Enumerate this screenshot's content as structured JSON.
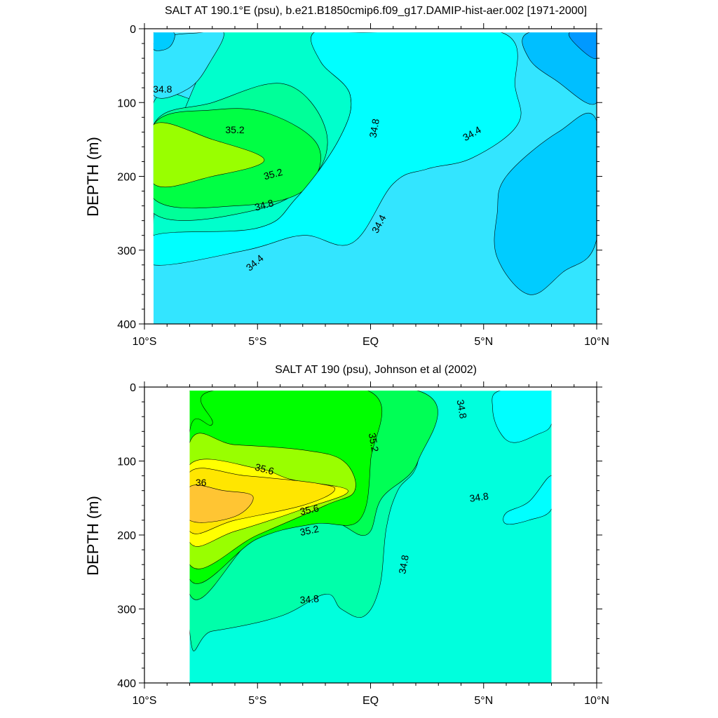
{
  "chart_data": [
    {
      "type": "contour",
      "title": "SALT AT 190.1°E (psu), b.e21.B1850cmip6.f09_g17.DAMIP-hist-aer.002 [1971-2000]",
      "ylabel": "DEPTH (m)",
      "xlabel": "",
      "xlim": [
        -10,
        10
      ],
      "ylim": [
        0,
        400
      ],
      "y_reversed": true,
      "x_ticks": [
        -10,
        -5,
        0,
        5,
        10
      ],
      "x_tick_labels": [
        "10°S",
        "5°S",
        "EQ",
        "5°N",
        "10°N"
      ],
      "y_ticks": [
        0,
        100,
        200,
        300,
        400
      ],
      "y_tick_labels": [
        "0",
        "100",
        "200",
        "300",
        "400"
      ],
      "data_extent": {
        "x": [
          -9.6,
          10
        ],
        "y": [
          5,
          400
        ]
      },
      "background_color": "#33E5FF",
      "regions": [
        {
          "level": 34.8,
          "color": "#00FFCC",
          "outline": [
            [
              -9.6,
              100
            ],
            [
              -7,
              100
            ],
            [
              -4,
              75
            ],
            [
              -1.3,
              130
            ],
            [
              -1.3,
              180
            ],
            [
              -3,
              240
            ],
            [
              -6,
              270
            ],
            [
              -9.6,
              280
            ]
          ]
        },
        {
          "level": 34.8,
          "color": "#00FFCC",
          "outline": [
            [
              -6.5,
              5
            ],
            [
              -2.5,
              5
            ],
            [
              -2.2,
              45
            ],
            [
              -0.9,
              90
            ],
            [
              -1.4,
              150
            ],
            [
              -3.3,
              230
            ],
            [
              -5,
              270
            ],
            [
              -9.6,
              280
            ]
          ]
        },
        {
          "level": 35.0,
          "color": "#00FF99",
          "outline": [
            [
              -9.6,
              130
            ],
            [
              -7,
              100
            ],
            [
              -3.8,
              75
            ],
            [
              -2,
              135
            ],
            [
              -2.5,
              200
            ],
            [
              -5,
              245
            ],
            [
              -9.6,
              250
            ]
          ]
        },
        {
          "level": 35.2,
          "color": "#00FF44",
          "outline": [
            [
              -9.6,
              130
            ],
            [
              -7,
              110
            ],
            [
              -4.5,
              115
            ],
            [
              -2.3,
              160
            ],
            [
              -3,
              220
            ],
            [
              -6,
              240
            ],
            [
              -9.6,
              230
            ]
          ]
        },
        {
          "level": 35.4,
          "color": "#99FF00",
          "outline": [
            [
              -9.6,
              130
            ],
            [
              -7,
              150
            ],
            [
              -4.7,
              178
            ],
            [
              -7,
              200
            ],
            [
              -9.6,
              210
            ]
          ]
        },
        {
          "level": 34.4,
          "color": "#33E5FF",
          "outline": [
            [
              -9.6,
              20
            ],
            [
              -7.5,
              5
            ],
            [
              -6.5,
              5
            ],
            [
              -7,
              40
            ],
            [
              -8,
              80
            ],
            [
              -9.6,
              90
            ]
          ]
        },
        {
          "level": 34.0,
          "color": "#00CCFF",
          "outline": [
            [
              5.6,
              250
            ],
            [
              6,
              200
            ],
            [
              8.3,
              140
            ],
            [
              10,
              125
            ],
            [
              10,
              285
            ],
            [
              8.5,
              330
            ],
            [
              7,
              360
            ],
            [
              5.6,
              310
            ]
          ]
        },
        {
          "level": 33.8,
          "color": "#00BFFF",
          "outline": [
            [
              7,
              5
            ],
            [
              10,
              5
            ],
            [
              10,
              100
            ],
            [
              8.2,
              70
            ],
            [
              7,
              40
            ]
          ]
        },
        {
          "level": 33.6,
          "color": "#0099FF",
          "outline": [
            [
              8.8,
              5
            ],
            [
              10,
              5
            ],
            [
              10,
              40
            ],
            [
              9.2,
              25
            ]
          ]
        },
        {
          "level": 34.0,
          "color": "#00CCFF",
          "outline": [
            [
              -9.6,
              5
            ],
            [
              -8.7,
              5
            ],
            [
              -8.9,
              25
            ],
            [
              -9.6,
              28
            ]
          ]
        },
        {
          "level": 34.6,
          "color": "#00FFFF",
          "outline": [
            [
              -0.3,
              5
            ],
            [
              5.8,
              5
            ],
            [
              6.4,
              80
            ],
            [
              6.5,
              130
            ],
            [
              4.5,
              175
            ],
            [
              2.5,
              190
            ],
            [
              1,
              210
            ],
            [
              -0.8,
              290
            ],
            [
              -3,
              280
            ],
            [
              -5.5,
              300
            ],
            [
              -9.6,
              320
            ],
            [
              -9.6,
              280
            ],
            [
              -5,
              270
            ],
            [
              -3.3,
              230
            ],
            [
              -1.4,
              150
            ],
            [
              -0.9,
              90
            ],
            [
              -2.2,
              45
            ],
            [
              -2.5,
              5
            ]
          ]
        }
      ],
      "contour_labels": [
        {
          "text": "34.8",
          "x": -9.2,
          "y": 83,
          "angle": 0
        },
        {
          "text": "35.2",
          "x": -6,
          "y": 138,
          "angle": 0
        },
        {
          "text": "34.8",
          "x": 0.2,
          "y": 135,
          "angle": -80
        },
        {
          "text": "34.4",
          "x": 4.5,
          "y": 143,
          "angle": -30
        },
        {
          "text": "35.2",
          "x": -4.3,
          "y": 198,
          "angle": -15
        },
        {
          "text": "34.8",
          "x": -4.7,
          "y": 240,
          "angle": -15
        },
        {
          "text": "34.4",
          "x": 0.4,
          "y": 265,
          "angle": -62
        },
        {
          "text": "34.4",
          "x": -5.1,
          "y": 318,
          "angle": -40
        }
      ]
    },
    {
      "type": "contour",
      "title": "SALT AT 190 (psu), Johnson et al (2002)",
      "ylabel": "DEPTH (m)",
      "xlabel": "",
      "xlim": [
        -10,
        10
      ],
      "ylim": [
        0,
        400
      ],
      "y_reversed": true,
      "x_ticks": [
        -10,
        -5,
        0,
        5,
        10
      ],
      "x_tick_labels": [
        "10°S",
        "5°S",
        "EQ",
        "5°N",
        "10°N"
      ],
      "y_ticks": [
        0,
        100,
        200,
        300,
        400
      ],
      "y_tick_labels": [
        "0",
        "100",
        "200",
        "300",
        "400"
      ],
      "data_extent": {
        "x": [
          -8,
          8
        ],
        "y": [
          5,
          400
        ]
      },
      "background_color": "#00FFDD",
      "regions": [
        {
          "level": 35.0,
          "color": "#00FFAA",
          "outline": [
            [
              -8,
              5
            ],
            [
              2.1,
              5
            ],
            [
              2.1,
              100
            ],
            [
              1.2,
              140
            ],
            [
              0.7,
              190
            ],
            [
              0.4,
              270
            ],
            [
              -0.3,
              310
            ],
            [
              -1.3,
              300
            ],
            [
              -2,
              280
            ],
            [
              -4,
              310
            ],
            [
              -7,
              330
            ],
            [
              -8,
              330
            ]
          ]
        },
        {
          "level": 35.2,
          "color": "#00FF55",
          "outline": [
            [
              -8,
              5
            ],
            [
              2.1,
              5
            ],
            [
              2.1,
              100
            ],
            [
              0.5,
              150
            ],
            [
              -0.2,
              200
            ],
            [
              -2,
              180
            ],
            [
              -5,
              200
            ],
            [
              -8,
              280
            ]
          ]
        },
        {
          "level": 35.2,
          "color": "#00FF00",
          "outline": [
            [
              -8,
              5
            ],
            [
              -7,
              5
            ],
            [
              -7,
              50
            ],
            [
              -8,
              60
            ]
          ]
        },
        {
          "level": 35.4,
          "color": "#00FF00",
          "outline": [
            [
              -8,
              60
            ],
            [
              -7,
              50
            ],
            [
              -7,
              5
            ],
            [
              -0.1,
              5
            ],
            [
              0,
              100
            ],
            [
              -0.5,
              180
            ],
            [
              -2.5,
              185
            ],
            [
              -5,
              205
            ],
            [
              -8,
              260
            ]
          ]
        },
        {
          "level": 35.6,
          "color": "#99FF00",
          "outline": [
            [
              -8,
              75
            ],
            [
              -6,
              78
            ],
            [
              -3,
              85
            ],
            [
              -1.2,
              100
            ],
            [
              -0.7,
              140
            ],
            [
              -2,
              160
            ],
            [
              -5,
              200
            ],
            [
              -8,
              240
            ]
          ]
        },
        {
          "level": 35.8,
          "color": "#FFFF00",
          "outline": [
            [
              -8,
              105
            ],
            [
              -5,
              110
            ],
            [
              -3.5,
              125
            ],
            [
              -1,
              140
            ],
            [
              -3,
              165
            ],
            [
              -6,
              195
            ],
            [
              -8,
              210
            ]
          ]
        },
        {
          "level": 36.0,
          "color": "#FFE600",
          "outline": [
            [
              -8,
              115
            ],
            [
              -5.5,
              120
            ],
            [
              -2.4,
              130
            ],
            [
              -1.6,
              140
            ],
            [
              -3,
              160
            ],
            [
              -6,
              180
            ],
            [
              -8,
              195
            ]
          ]
        },
        {
          "level": 36.2,
          "color": "#FFC533",
          "outline": [
            [
              -8,
              135
            ],
            [
              -6.5,
              140
            ],
            [
              -5.2,
              148
            ],
            [
              -6,
              175
            ],
            [
              -8,
              180
            ]
          ]
        },
        {
          "level": 34.6,
          "color": "#00FFFF",
          "outline": [
            [
              5.7,
              5
            ],
            [
              8,
              5
            ],
            [
              8,
              50
            ],
            [
              7.3,
              65
            ],
            [
              6.3,
              75
            ],
            [
              5.7,
              60
            ],
            [
              5.4,
              30
            ]
          ]
        },
        {
          "level": 34.6,
          "color": "#00FFFF",
          "outline": [
            [
              6,
              170
            ],
            [
              7,
              155
            ],
            [
              8,
              120
            ],
            [
              8,
              165
            ],
            [
              7,
              180
            ],
            [
              6,
              185
            ]
          ]
        }
      ],
      "contour_labels": [
        {
          "text": "34.8",
          "x": 4,
          "y": 30,
          "angle": 80
        },
        {
          "text": "35.2",
          "x": 0.1,
          "y": 75,
          "angle": 80
        },
        {
          "text": "35.6",
          "x": -4.7,
          "y": 112,
          "angle": 15
        },
        {
          "text": "36",
          "x": -7.5,
          "y": 130,
          "angle": 0
        },
        {
          "text": "35.6",
          "x": -2.7,
          "y": 167,
          "angle": -12
        },
        {
          "text": "35.2",
          "x": -2.7,
          "y": 195,
          "angle": -12
        },
        {
          "text": "34.8",
          "x": 4.8,
          "y": 150,
          "angle": -8
        },
        {
          "text": "34.8",
          "x": 1.5,
          "y": 240,
          "angle": -80
        },
        {
          "text": "34.8",
          "x": -2.7,
          "y": 288,
          "angle": -5
        }
      ]
    }
  ]
}
